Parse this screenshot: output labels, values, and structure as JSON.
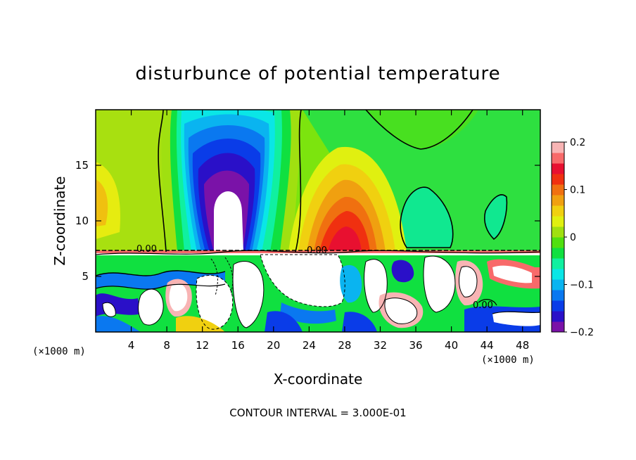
{
  "chart_data": {
    "type": "heatmap",
    "title": "disturbunce of potential temperature",
    "xlabel": "X-coordinate",
    "ylabel": "Z-coordinate",
    "x_unit": "(×1000 m)",
    "y_unit": "(×1000 m)",
    "xlim": [
      0,
      50
    ],
    "ylim": [
      0,
      20
    ],
    "x_ticks": [
      4,
      8,
      12,
      16,
      20,
      24,
      28,
      32,
      36,
      40,
      44,
      48
    ],
    "y_ticks": [
      5,
      10,
      15
    ],
    "colorbar": {
      "min": -0.2,
      "max": 0.2,
      "tick_values": [
        0.2,
        0.1,
        0,
        -0.1,
        -0.2
      ],
      "tick_labels": [
        "0.2",
        "0.1",
        "0",
        "−0.1",
        "−0.2"
      ],
      "colors": [
        "#7a12a8",
        "#2a10c8",
        "#0a3ce8",
        "#0a78f0",
        "#0ab4f0",
        "#0ae6e6",
        "#10f0a0",
        "#10e040",
        "#50e010",
        "#a0e010",
        "#e0f010",
        "#f0d010",
        "#f0a010",
        "#f07010",
        "#f03010",
        "#e81030",
        "#f86a6a",
        "#f8b4b4"
      ]
    },
    "contour_labels": [
      "0.00",
      "0.00",
      "0.00"
    ],
    "contour_interval_text": "CONTOUR INTERVAL = 3.000E-01",
    "grid": false,
    "legend": "colorbar-right",
    "features": [
      {
        "name": "cold anomaly",
        "x_center": 15,
        "z_top": 20,
        "z_bottom": 7.5,
        "value": -0.2
      },
      {
        "name": "warm anomaly",
        "x_center": 28,
        "z_top": 18,
        "z_bottom": 7.5,
        "value": 0.12
      }
    ]
  }
}
